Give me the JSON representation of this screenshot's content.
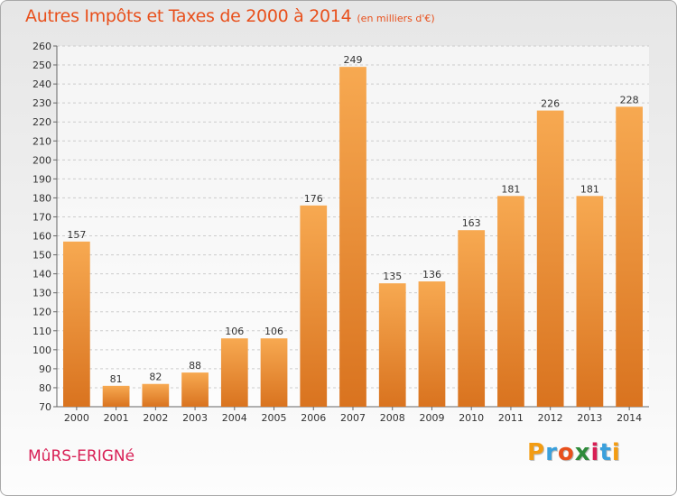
{
  "title": "Autres Impôts et Taxes de 2000 à 2014",
  "subtitle": "(en milliers d'€)",
  "city": "MûRS-ERIGNé",
  "logo": {
    "text": "Proxiti",
    "letters": [
      "P",
      "r",
      "o",
      "x",
      "i",
      "t",
      "i"
    ],
    "letter_colors": [
      "#f39c12",
      "#3aa0dc",
      "#e8501c",
      "#2e8b3a",
      "#d81f55",
      "#3aa0dc",
      "#f39c12"
    ]
  },
  "colors": {
    "title": "#e8501c",
    "city": "#d81f55",
    "bar_light": "#f7a951",
    "bar_dark": "#d9731f",
    "grid": "#cccccc",
    "axis": "#666666"
  },
  "chart_data": {
    "type": "bar",
    "title": "Autres Impôts et Taxes de 2000 à 2014",
    "subtitle": "(en milliers d'€)",
    "categories": [
      "2000",
      "2001",
      "2002",
      "2003",
      "2004",
      "2005",
      "2006",
      "2007",
      "2008",
      "2009",
      "2010",
      "2011",
      "2012",
      "2013",
      "2014"
    ],
    "values": [
      157,
      81,
      82,
      88,
      106,
      106,
      176,
      249,
      135,
      136,
      163,
      181,
      226,
      181,
      228
    ],
    "ylim": [
      70,
      260
    ],
    "ytick_step": 10,
    "grid": true,
    "data_labels": true
  }
}
